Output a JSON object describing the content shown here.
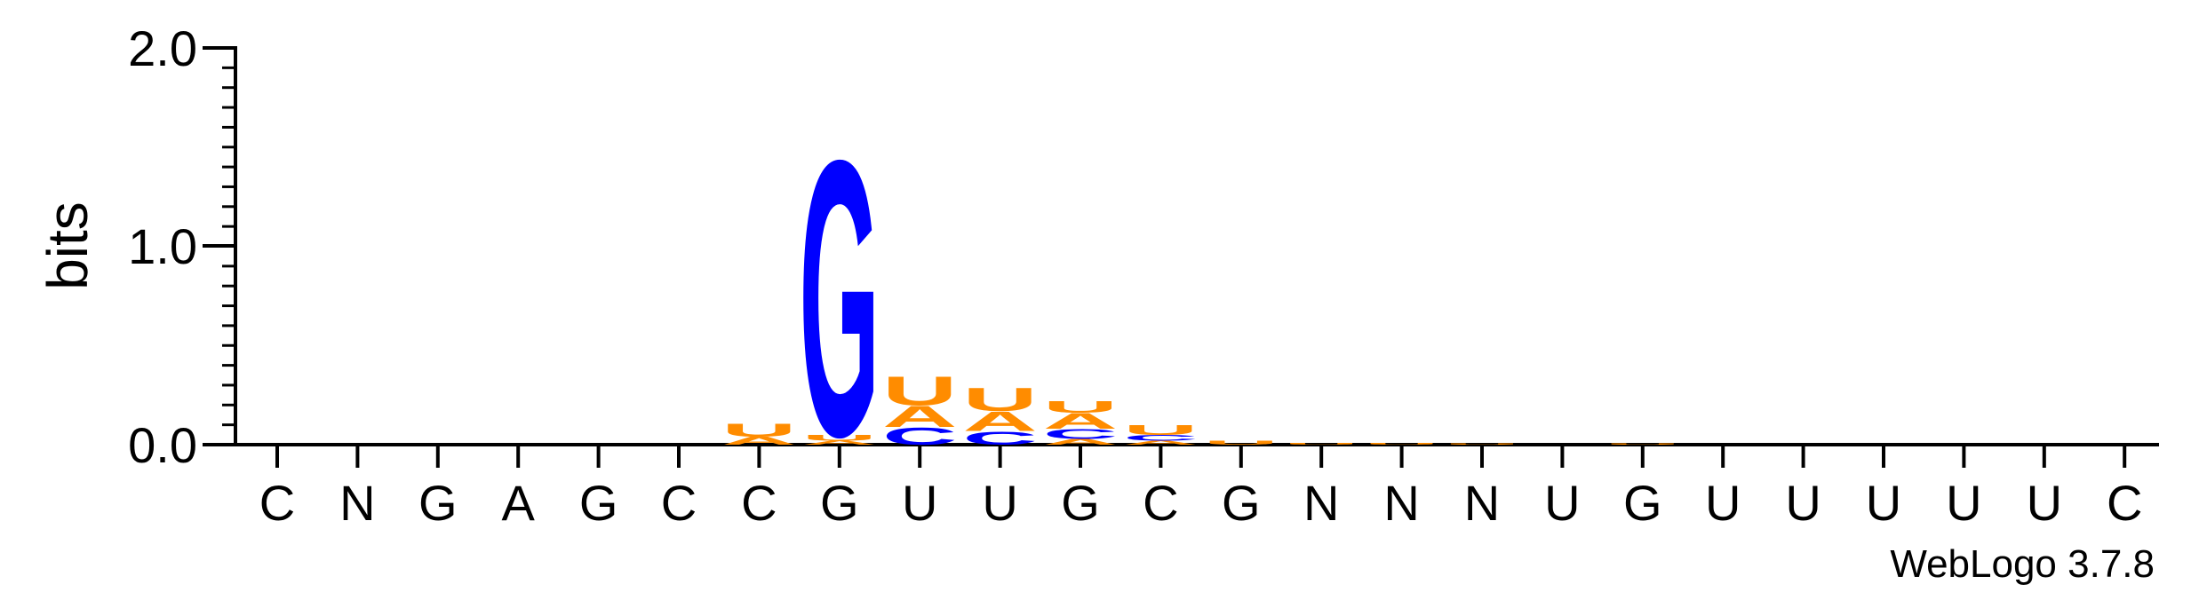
{
  "chart_data": {
    "type": "sequence-logo",
    "ylabel": "bits",
    "ylim": [
      0,
      2.0
    ],
    "yticks": [
      "0.0",
      "1.0",
      "2.0"
    ],
    "consensus": [
      "C",
      "N",
      "G",
      "A",
      "G",
      "C",
      "C",
      "G",
      "U",
      "U",
      "G",
      "C",
      "G",
      "N",
      "N",
      "N",
      "U",
      "G",
      "U",
      "U",
      "U",
      "U",
      "U",
      "C"
    ],
    "colors": {
      "G": "#0000ff",
      "C": "#0000ff",
      "A": "#ff8c00",
      "U": "#ff8c00"
    },
    "positions": [
      [],
      [],
      [],
      [],
      [],
      [],
      [
        [
          "A",
          0.04
        ],
        [
          "U",
          0.07
        ]
      ],
      [
        [
          "A",
          0.02
        ],
        [
          "U",
          0.03
        ],
        [
          "G",
          1.43
        ]
      ],
      [
        [
          "C",
          0.09
        ],
        [
          "A",
          0.11
        ],
        [
          "U",
          0.15
        ]
      ],
      [
        [
          "C",
          0.07
        ],
        [
          "A",
          0.1
        ],
        [
          "U",
          0.12
        ]
      ],
      [
        [
          "A",
          0.03
        ],
        [
          "C",
          0.05
        ],
        [
          "A",
          0.08
        ],
        [
          "U",
          0.06
        ]
      ],
      [
        [
          "A",
          0.02
        ],
        [
          "C",
          0.03
        ],
        [
          "U",
          0.05
        ]
      ],
      [
        [
          "U",
          0.02
        ]
      ],
      [
        [
          "U",
          0.01
        ]
      ],
      [
        [
          "U",
          0.01
        ]
      ],
      [
        [
          "U",
          0.005
        ]
      ],
      [],
      [
        [
          "U",
          0.005
        ]
      ],
      [],
      [],
      [],
      [],
      [],
      []
    ],
    "credit": "WebLogo 3.7.8"
  }
}
